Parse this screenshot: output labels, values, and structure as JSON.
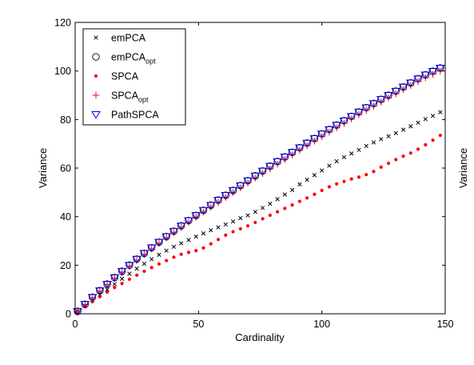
{
  "chart_data": {
    "type": "scatter",
    "xlabel": "Cardinality",
    "ylabel": "Variance",
    "ylabel_right": "Variance",
    "xlim": [
      0,
      150
    ],
    "ylim": [
      0,
      120
    ],
    "xticks": [
      0,
      50,
      100,
      150
    ],
    "yticks": [
      0,
      20,
      40,
      60,
      80,
      100,
      120
    ],
    "grid": false,
    "legend_position": "top-left",
    "series": [
      {
        "name": "emPCA",
        "name_sub": "",
        "marker": "x",
        "color": "#000000",
        "x": [
          1,
          4,
          7,
          10,
          13,
          16,
          19,
          22,
          25,
          28,
          31,
          34,
          37,
          40,
          43,
          46,
          49,
          52,
          55,
          58,
          61,
          64,
          67,
          70,
          73,
          76,
          79,
          82,
          85,
          88,
          91,
          94,
          97,
          100,
          103,
          106,
          109,
          112,
          115,
          118,
          121,
          124,
          127,
          130,
          133,
          136,
          139,
          142,
          145,
          148
        ],
        "y": [
          1,
          3.3,
          5.6,
          7.9,
          10,
          12.2,
          14.4,
          16.5,
          18.6,
          20.6,
          22.5,
          24.3,
          26,
          27.6,
          29,
          30.4,
          31.8,
          33.1,
          34.4,
          35.6,
          36.8,
          38,
          39.4,
          40.5,
          42,
          43.6,
          45.3,
          47.2,
          49.1,
          51,
          53.3,
          55.2,
          57.1,
          59,
          61,
          62.8,
          64.5,
          66,
          67.5,
          69.1,
          70.6,
          71.9,
          73.1,
          74.4,
          75.8,
          77.2,
          78.7,
          80.2,
          81.5,
          83
        ]
      },
      {
        "name": "emPCA",
        "name_sub": "opt",
        "marker": "circle",
        "color": "#000000",
        "x": [
          1,
          4,
          7,
          10,
          13,
          16,
          19,
          22,
          25,
          28,
          31,
          34,
          37,
          40,
          43,
          46,
          49,
          52,
          55,
          58,
          61,
          64,
          67,
          70,
          73,
          76,
          79,
          82,
          85,
          88,
          91,
          94,
          97,
          100,
          103,
          106,
          109,
          112,
          115,
          118,
          121,
          124,
          127,
          130,
          133,
          136,
          139,
          142,
          145,
          148
        ],
        "y": [
          1,
          3.9,
          6.8,
          9.5,
          12.2,
          14.9,
          17.5,
          20,
          22.5,
          24.9,
          27.2,
          29.5,
          31.8,
          34,
          36.2,
          38.4,
          40.5,
          42.6,
          44.7,
          46.8,
          48.8,
          50.8,
          52.8,
          54.8,
          56.8,
          58.8,
          60.8,
          62.7,
          64.6,
          66.5,
          68.4,
          70.3,
          72.2,
          74.1,
          75.9,
          77.7,
          79.5,
          81.3,
          83.1,
          84.9,
          86.6,
          88.3,
          90,
          91.7,
          93.4,
          95.1,
          96.8,
          98.4,
          99.9,
          101.2
        ]
      },
      {
        "name": "SPCA",
        "name_sub": "",
        "marker": "dot",
        "color": "#ff0000",
        "x": [
          1,
          4,
          7,
          10,
          13,
          16,
          19,
          22,
          25,
          28,
          31,
          34,
          37,
          40,
          43,
          46,
          49,
          52,
          55,
          58,
          61,
          64,
          67,
          70,
          73,
          76,
          79,
          82,
          85,
          88,
          91,
          94,
          97,
          100,
          103,
          106,
          109,
          112,
          115,
          118,
          121,
          124,
          127,
          130,
          133,
          136,
          139,
          142,
          145,
          148
        ],
        "y": [
          0.8,
          2.9,
          5,
          7,
          8.9,
          10.8,
          12.5,
          14.2,
          15.9,
          17.5,
          19,
          20.5,
          21.9,
          23.3,
          24.5,
          25.3,
          26,
          27.1,
          28.8,
          30.6,
          32.4,
          33.8,
          35,
          36.2,
          37.6,
          39.1,
          40.6,
          42,
          43.4,
          44.8,
          46.3,
          47.7,
          49.2,
          50.8,
          52.3,
          53.5,
          54.5,
          55.5,
          56.3,
          57.3,
          58.6,
          60.4,
          62,
          63.5,
          64.9,
          66.2,
          67.8,
          69.6,
          71.5,
          73.5
        ]
      },
      {
        "name": "SPCA",
        "name_sub": "opt",
        "marker": "plus",
        "color": "#ff0000",
        "x": [
          1,
          4,
          7,
          10,
          13,
          16,
          19,
          22,
          25,
          28,
          31,
          34,
          37,
          40,
          43,
          46,
          49,
          52,
          55,
          58,
          61,
          64,
          67,
          70,
          73,
          76,
          79,
          82,
          85,
          88,
          91,
          94,
          97,
          100,
          103,
          106,
          109,
          112,
          115,
          118,
          121,
          124,
          127,
          130,
          133,
          136,
          139,
          142,
          145,
          148
        ],
        "y": [
          1,
          3.8,
          6.6,
          9.3,
          12,
          14.6,
          17.1,
          19.6,
          22,
          24.4,
          26.7,
          29,
          31.2,
          33.4,
          35.6,
          37.7,
          39.8,
          41.9,
          43.9,
          45.9,
          47.9,
          49.9,
          51.9,
          53.9,
          55.9,
          57.8,
          59.7,
          61.6,
          63.5,
          65.4,
          67.3,
          69.2,
          71.1,
          73,
          74.8,
          76.6,
          78.4,
          80.2,
          82,
          83.8,
          85.5,
          87.2,
          88.9,
          90.6,
          92.3,
          94,
          95.6,
          97.2,
          98.6,
          99.9
        ]
      },
      {
        "name": "PathSPCA",
        "name_sub": "",
        "marker": "triangle-down",
        "color": "#0000ff",
        "x": [
          1,
          4,
          7,
          10,
          13,
          16,
          19,
          22,
          25,
          28,
          31,
          34,
          37,
          40,
          43,
          46,
          49,
          52,
          55,
          58,
          61,
          64,
          67,
          70,
          73,
          76,
          79,
          82,
          85,
          88,
          91,
          94,
          97,
          100,
          103,
          106,
          109,
          112,
          115,
          118,
          121,
          124,
          127,
          130,
          133,
          136,
          139,
          142,
          145,
          148
        ],
        "y": [
          1,
          3.9,
          6.8,
          9.5,
          12.2,
          14.9,
          17.5,
          20,
          22.5,
          24.9,
          27.2,
          29.5,
          31.8,
          34,
          36.2,
          38.4,
          40.5,
          42.6,
          44.7,
          46.8,
          48.8,
          50.8,
          52.8,
          54.8,
          56.8,
          58.8,
          60.8,
          62.7,
          64.6,
          66.5,
          68.4,
          70.3,
          72.2,
          74.1,
          75.9,
          77.7,
          79.5,
          81.3,
          83.1,
          84.9,
          86.6,
          88.3,
          90,
          91.7,
          93.4,
          95.1,
          96.8,
          98.4,
          99.9,
          101.2
        ]
      }
    ]
  }
}
